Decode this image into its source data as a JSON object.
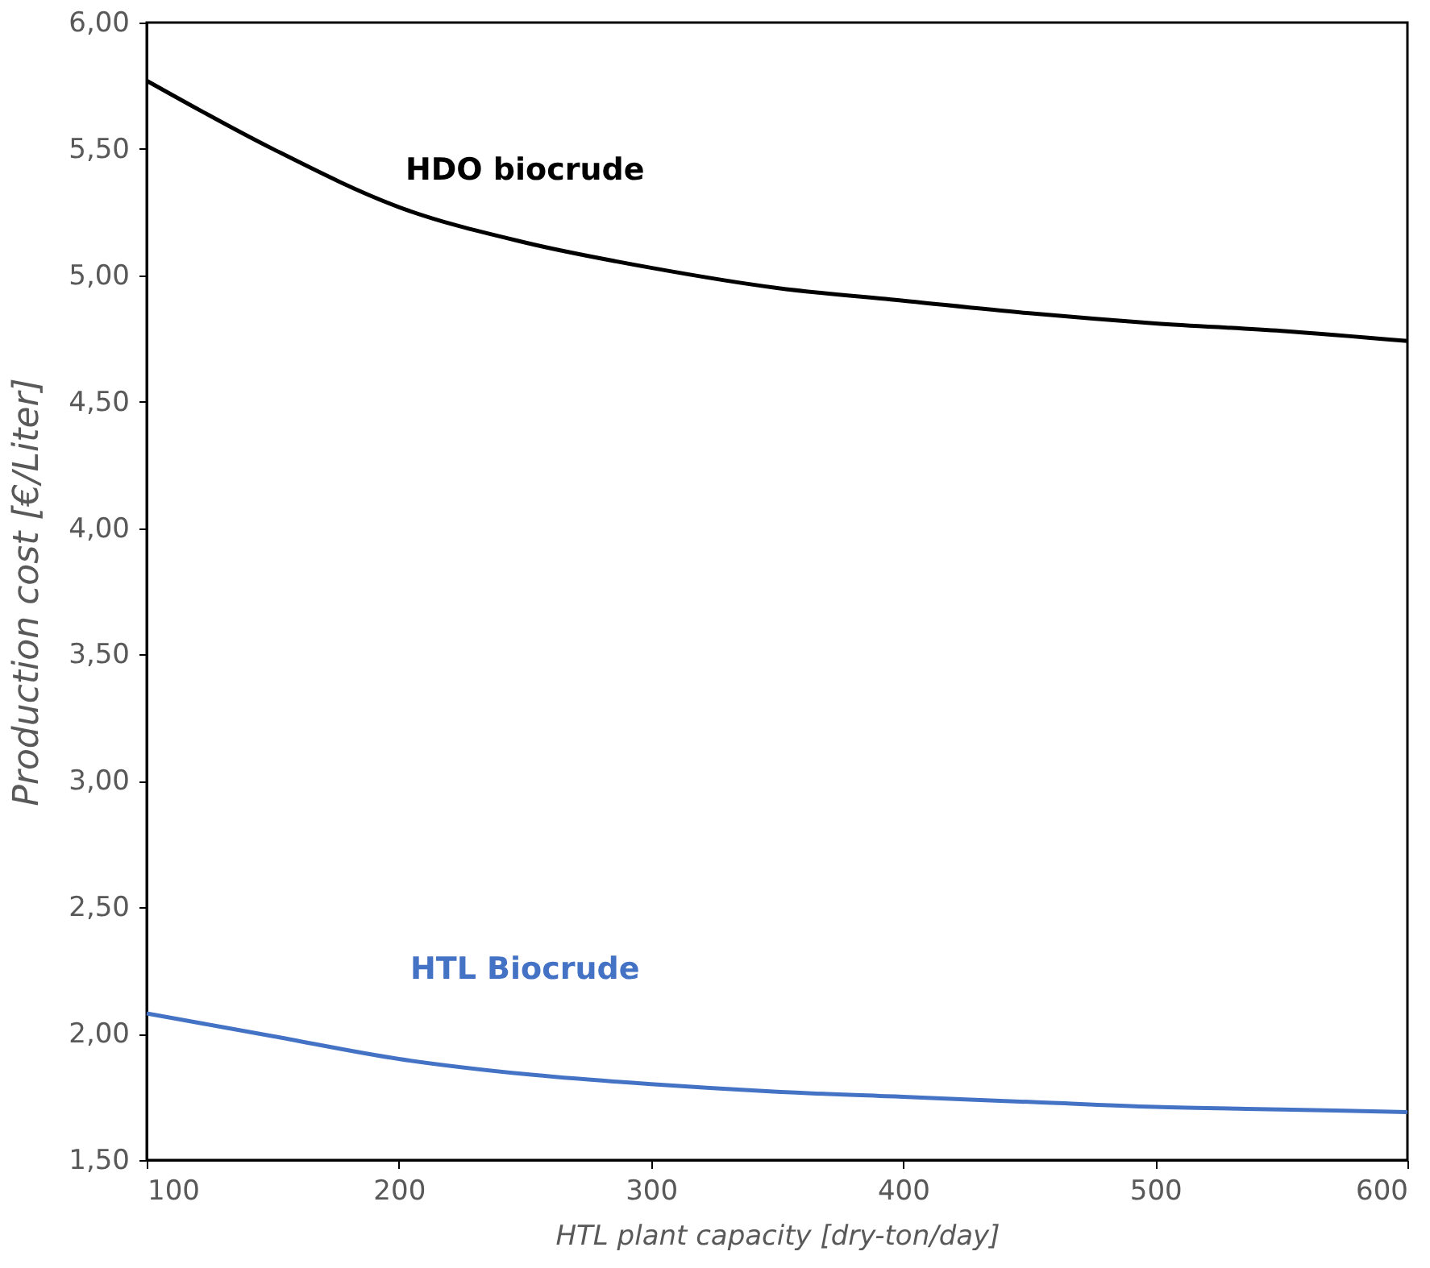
{
  "chart_data": {
    "type": "line",
    "xlabel": "HTL plant capacity [dry-ton/day]",
    "ylabel": "Production cost [€/Liter]",
    "x": [
      100,
      150,
      200,
      250,
      300,
      350,
      400,
      450,
      500,
      550,
      600
    ],
    "series": [
      {
        "name": "HDO biocrude",
        "color": "#000000",
        "values": [
          5.77,
          5.5,
          5.27,
          5.13,
          5.03,
          4.95,
          4.9,
          4.85,
          4.81,
          4.78,
          4.74
        ]
      },
      {
        "name": "HTL Biocrude",
        "color": "#4472c4",
        "values": [
          2.08,
          1.99,
          1.9,
          1.84,
          1.8,
          1.77,
          1.75,
          1.73,
          1.71,
          1.7,
          1.69
        ]
      }
    ],
    "xlim": [
      100,
      600
    ],
    "xticks": [
      100,
      200,
      300,
      400,
      500,
      600
    ],
    "ylim": [
      1.5,
      6.0
    ],
    "yticks": [
      {
        "value": 1.5,
        "label": "1,50"
      },
      {
        "value": 2.0,
        "label": "2,00"
      },
      {
        "value": 2.5,
        "label": "2,50"
      },
      {
        "value": 3.0,
        "label": "3,00"
      },
      {
        "value": 3.5,
        "label": "3,50"
      },
      {
        "value": 4.0,
        "label": "4,00"
      },
      {
        "value": 4.5,
        "label": "4,50"
      },
      {
        "value": 5.0,
        "label": "5,00"
      },
      {
        "value": 5.5,
        "label": "5,50"
      },
      {
        "value": 6.0,
        "label": "6,00"
      }
    ],
    "grid": false,
    "marker": "none",
    "line_style": "solid"
  }
}
